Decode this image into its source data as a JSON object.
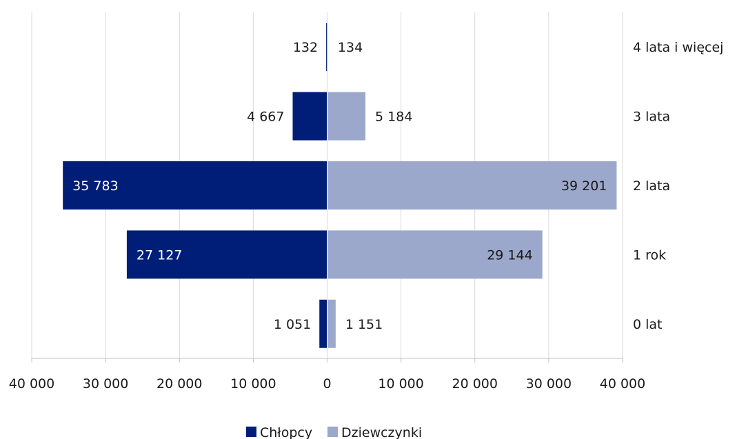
{
  "chart_data": {
    "type": "bar",
    "orientation": "horizontal-diverging",
    "categories": [
      "4 lata i więcej",
      "3 lata",
      "2 lata",
      "1 rok",
      "0 lat"
    ],
    "series": [
      {
        "name": "Chłopcy",
        "values": [
          132,
          4667,
          35783,
          27127,
          1051
        ],
        "labels": [
          "132",
          "4 667",
          "35 783",
          "27 127",
          "1 051"
        ],
        "color": "#001E78"
      },
      {
        "name": "Dziewczynki",
        "values": [
          134,
          5184,
          39201,
          29144,
          1151
        ],
        "labels": [
          "134",
          "5 184",
          "39 201",
          "29 144",
          "1 151"
        ],
        "color": "#9CA8CB"
      }
    ],
    "xlim": [
      -40000,
      40000
    ],
    "x_ticks": [
      -40000,
      -30000,
      -20000,
      -10000,
      0,
      10000,
      20000,
      30000,
      40000
    ],
    "x_tick_labels": [
      "40 000",
      "30 000",
      "20 000",
      "10 000",
      "0",
      "10 000",
      "20 000",
      "30 000",
      "40 000"
    ],
    "grid": true,
    "legend_position": "bottom",
    "title": "",
    "xlabel": "",
    "ylabel": ""
  }
}
